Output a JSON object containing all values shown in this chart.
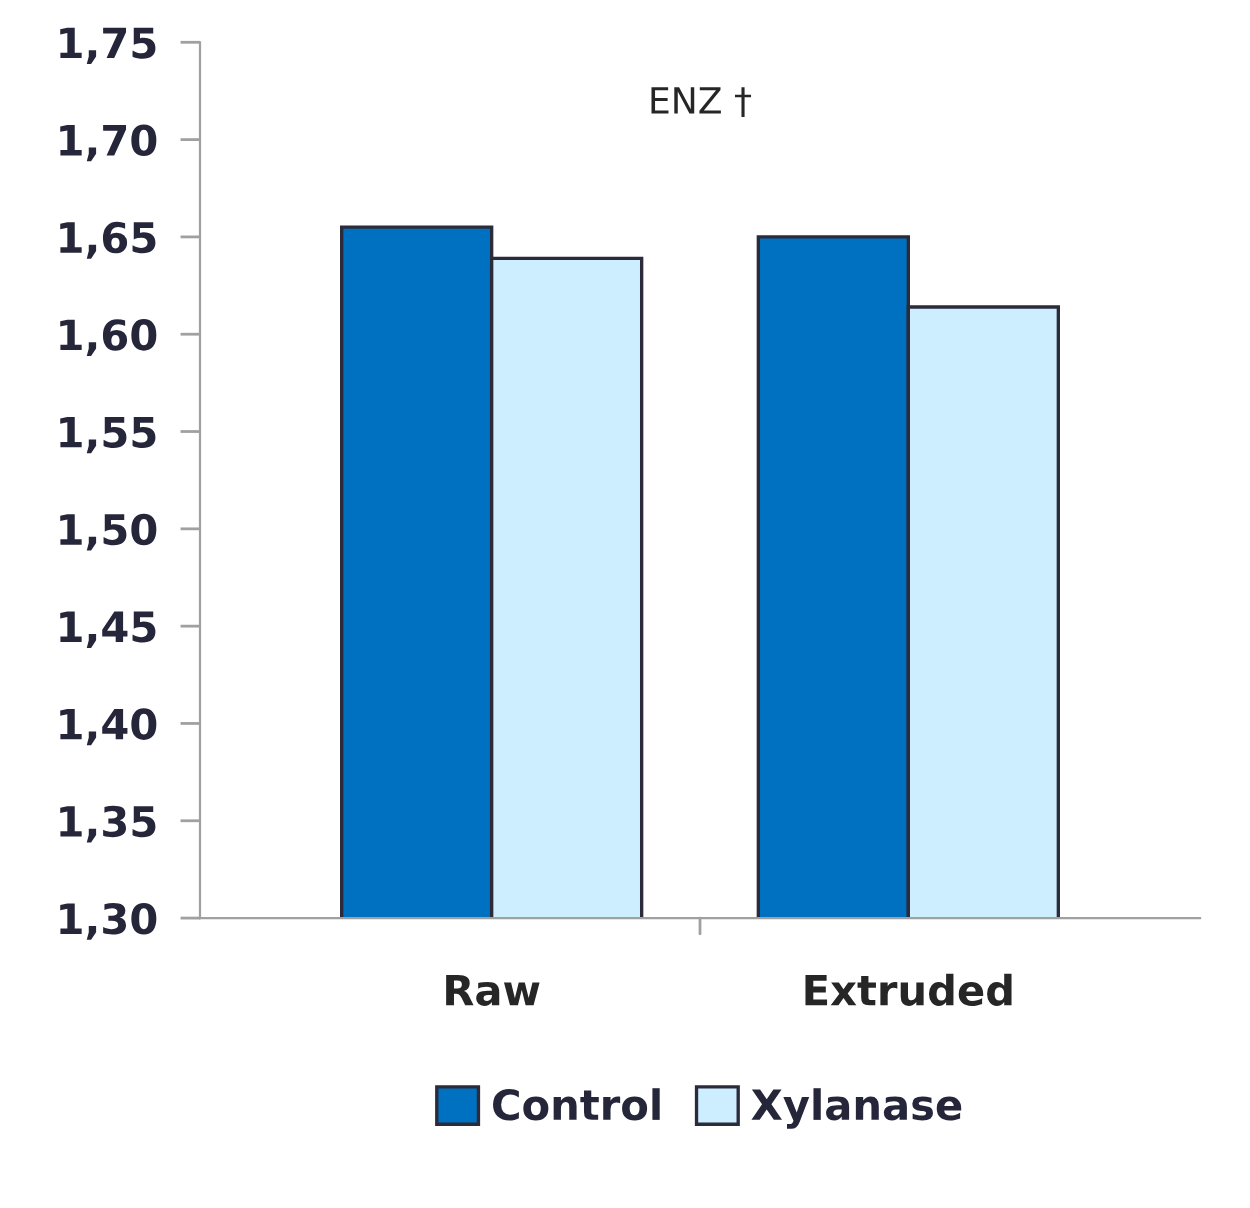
{
  "chart_data": {
    "type": "bar",
    "categories": [
      "Raw",
      "Extruded"
    ],
    "series": [
      {
        "name": "Control",
        "color": "#0070c0",
        "values": [
          1.655,
          1.65
        ]
      },
      {
        "name": "Xylanase",
        "color": "#cceeff",
        "values": [
          1.639,
          1.614
        ]
      }
    ],
    "ylim": [
      1.3,
      1.75
    ],
    "yticks": [
      {
        "value": 1.3,
        "label": "1,30"
      },
      {
        "value": 1.35,
        "label": "1,35"
      },
      {
        "value": 1.4,
        "label": "1,40"
      },
      {
        "value": 1.45,
        "label": "1,45"
      },
      {
        "value": 1.5,
        "label": "1,50"
      },
      {
        "value": 1.55,
        "label": "1,55"
      },
      {
        "value": 1.6,
        "label": "1,60"
      },
      {
        "value": 1.65,
        "label": "1,65"
      },
      {
        "value": 1.7,
        "label": "1,70"
      },
      {
        "value": 1.75,
        "label": "1,75"
      }
    ],
    "annotations": [
      "ENZ †"
    ],
    "grid": false,
    "legend": "bottom"
  }
}
